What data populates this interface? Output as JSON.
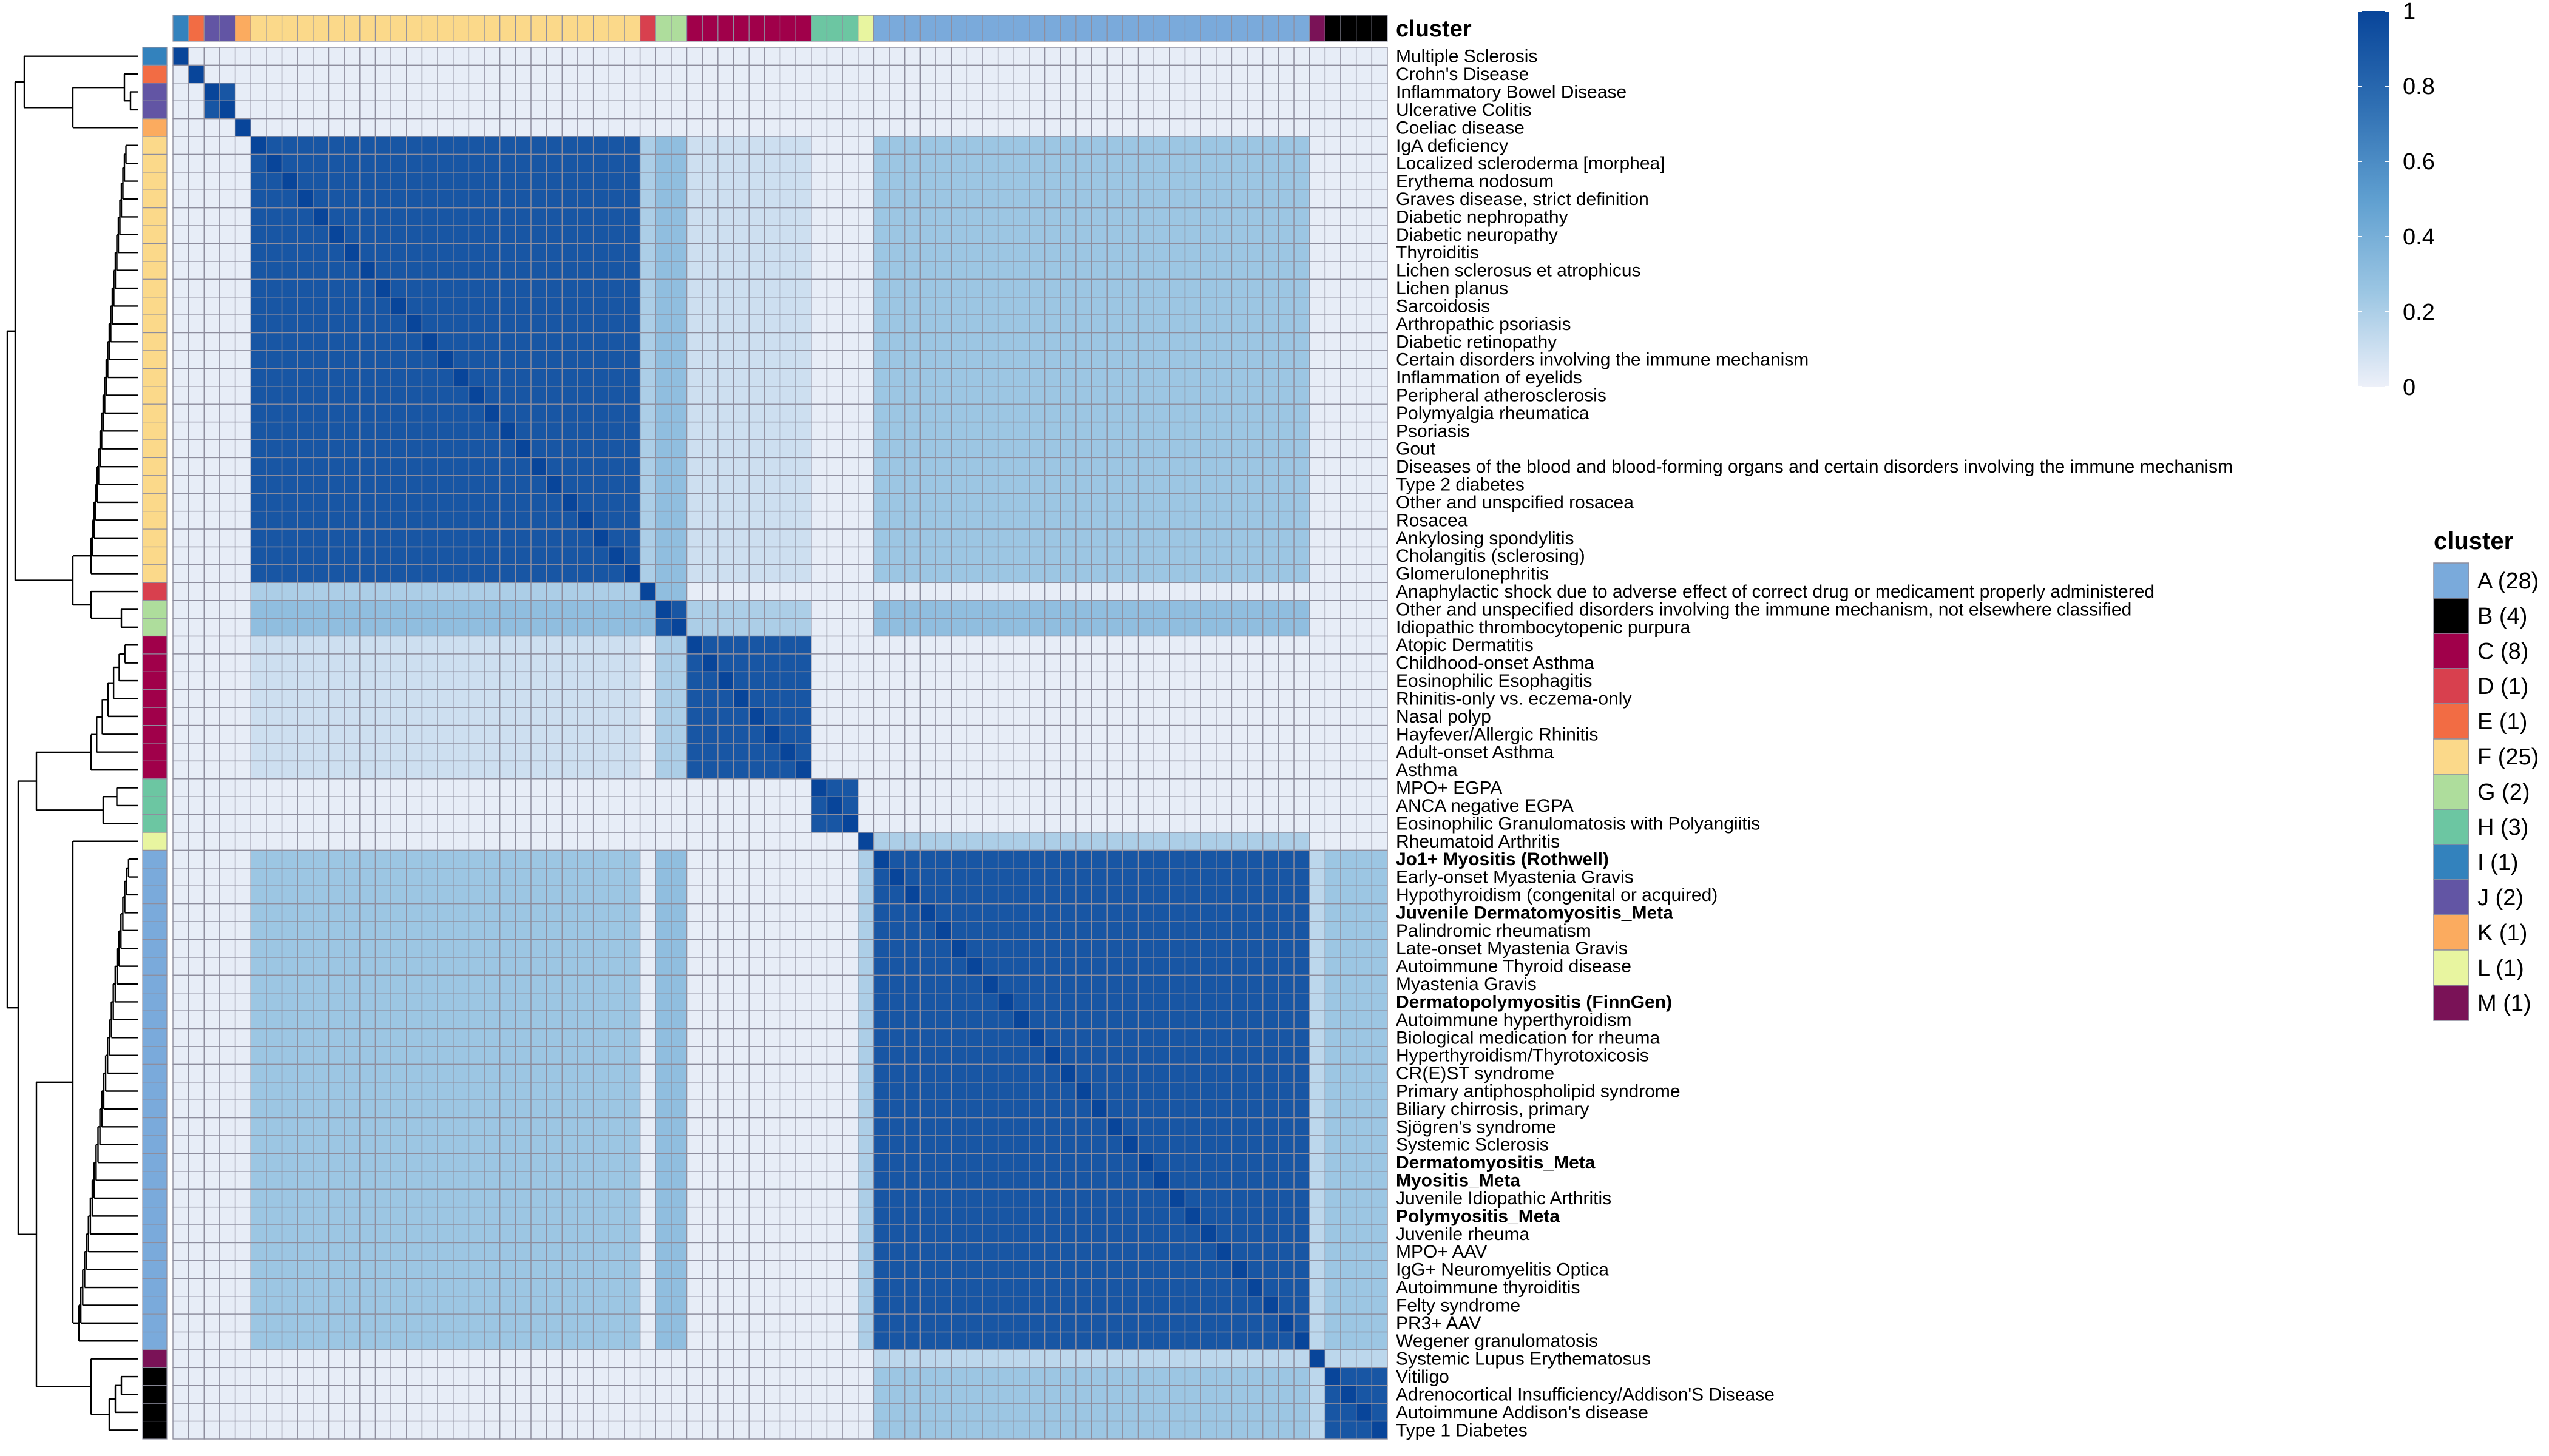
{
  "chart_data": {
    "type": "heatmap",
    "annotation_title": "cluster",
    "legend": {
      "title": "cluster",
      "entries": [
        {
          "key": "A",
          "label": "A (28)",
          "color": "#7aaadb"
        },
        {
          "key": "B",
          "label": "B (4)",
          "color": "#000000"
        },
        {
          "key": "C",
          "label": "C (8)",
          "color": "#a0004a"
        },
        {
          "key": "D",
          "label": "D (1)",
          "color": "#d8404e"
        },
        {
          "key": "E",
          "label": "E (1)",
          "color": "#f26c44"
        },
        {
          "key": "F",
          "label": "F (25)",
          "color": "#fbd98a"
        },
        {
          "key": "G",
          "label": "G (2)",
          "color": "#aedd9c"
        },
        {
          "key": "H",
          "label": "H (3)",
          "color": "#6cc6a2"
        },
        {
          "key": "I",
          "label": "I (1)",
          "color": "#3382bd"
        },
        {
          "key": "J",
          "label": "J (2)",
          "color": "#6255a4"
        },
        {
          "key": "K",
          "label": "K (1)",
          "color": "#fbab5f"
        },
        {
          "key": "L",
          "label": "L (1)",
          "color": "#e8f5a0"
        },
        {
          "key": "M",
          "label": "M (1)",
          "color": "#7a1257"
        }
      ]
    },
    "colorbar": {
      "ticks": [
        "1",
        "0.8",
        "0.6",
        "0.4",
        "0.2",
        "0"
      ],
      "min": 0,
      "max": 1,
      "colors": [
        "#edf0f9",
        "#9cc6e3",
        "#5f9fd0",
        "#2f6fb3",
        "#08459a"
      ]
    },
    "rows": [
      {
        "label": "Multiple Sclerosis",
        "cluster": "I",
        "bold": false
      },
      {
        "label": "Crohn's Disease",
        "cluster": "E",
        "bold": false
      },
      {
        "label": "Inflammatory Bowel Disease",
        "cluster": "J",
        "bold": false
      },
      {
        "label": "Ulcerative Colitis",
        "cluster": "J",
        "bold": false
      },
      {
        "label": "Coeliac disease",
        "cluster": "K",
        "bold": false
      },
      {
        "label": "IgA deficiency",
        "cluster": "F",
        "bold": false
      },
      {
        "label": "Localized scleroderma [morphea]",
        "cluster": "F",
        "bold": false
      },
      {
        "label": "Erythema nodosum",
        "cluster": "F",
        "bold": false
      },
      {
        "label": "Graves disease, strict definition",
        "cluster": "F",
        "bold": false
      },
      {
        "label": "Diabetic nephropathy",
        "cluster": "F",
        "bold": false
      },
      {
        "label": "Diabetic neuropathy",
        "cluster": "F",
        "bold": false
      },
      {
        "label": "Thyroiditis",
        "cluster": "F",
        "bold": false
      },
      {
        "label": "Lichen sclerosus et atrophicus",
        "cluster": "F",
        "bold": false
      },
      {
        "label": "Lichen planus",
        "cluster": "F",
        "bold": false
      },
      {
        "label": "Sarcoidosis",
        "cluster": "F",
        "bold": false
      },
      {
        "label": "Arthropathic psoriasis",
        "cluster": "F",
        "bold": false
      },
      {
        "label": "Diabetic retinopathy",
        "cluster": "F",
        "bold": false
      },
      {
        "label": "Certain disorders involving the immune mechanism",
        "cluster": "F",
        "bold": false
      },
      {
        "label": "Inflammation of eyelids",
        "cluster": "F",
        "bold": false
      },
      {
        "label": "Peripheral atherosclerosis",
        "cluster": "F",
        "bold": false
      },
      {
        "label": "Polymyalgia rheumatica",
        "cluster": "F",
        "bold": false
      },
      {
        "label": "Psoriasis",
        "cluster": "F",
        "bold": false
      },
      {
        "label": "Gout",
        "cluster": "F",
        "bold": false
      },
      {
        "label": "Diseases of the blood and blood-forming organs and certain disorders involving the immune mechanism",
        "cluster": "F",
        "bold": false
      },
      {
        "label": "Type 2 diabetes",
        "cluster": "F",
        "bold": false
      },
      {
        "label": "Other and unspcified rosacea",
        "cluster": "F",
        "bold": false
      },
      {
        "label": "Rosacea",
        "cluster": "F",
        "bold": false
      },
      {
        "label": "Ankylosing spondylitis",
        "cluster": "F",
        "bold": false
      },
      {
        "label": "Cholangitis (sclerosing)",
        "cluster": "F",
        "bold": false
      },
      {
        "label": "Glomerulonephritis",
        "cluster": "F",
        "bold": false
      },
      {
        "label": "Anaphylactic shock due to adverse effect of correct drug or medicament properly administered",
        "cluster": "D",
        "bold": false
      },
      {
        "label": "Other and unspecified disorders involving the immune mechanism, not elsewhere classified",
        "cluster": "G",
        "bold": false
      },
      {
        "label": "Idiopathic thrombocytopenic purpura",
        "cluster": "G",
        "bold": false
      },
      {
        "label": "Atopic Dermatitis",
        "cluster": "C",
        "bold": false
      },
      {
        "label": "Childhood-onset Asthma",
        "cluster": "C",
        "bold": false
      },
      {
        "label": "Eosinophilic Esophagitis",
        "cluster": "C",
        "bold": false
      },
      {
        "label": "Rhinitis-only vs. eczema-only",
        "cluster": "C",
        "bold": false
      },
      {
        "label": "Nasal polyp",
        "cluster": "C",
        "bold": false
      },
      {
        "label": "Hayfever/Allergic Rhinitis",
        "cluster": "C",
        "bold": false
      },
      {
        "label": "Adult-onset Asthma",
        "cluster": "C",
        "bold": false
      },
      {
        "label": "Asthma",
        "cluster": "C",
        "bold": false
      },
      {
        "label": "MPO+ EGPA",
        "cluster": "H",
        "bold": false
      },
      {
        "label": "ANCA negative EGPA",
        "cluster": "H",
        "bold": false
      },
      {
        "label": "Eosinophilic Granulomatosis with Polyangiitis",
        "cluster": "H",
        "bold": false
      },
      {
        "label": "Rheumatoid Arthritis",
        "cluster": "L",
        "bold": false
      },
      {
        "label": "Jo1+ Myositis (Rothwell)",
        "cluster": "A",
        "bold": true
      },
      {
        "label": "Early-onset Myastenia Gravis",
        "cluster": "A",
        "bold": false
      },
      {
        "label": "Hypothyroidism (congenital or acquired)",
        "cluster": "A",
        "bold": false
      },
      {
        "label": "Juvenile Dermatomyositis_Meta",
        "cluster": "A",
        "bold": true
      },
      {
        "label": "Palindromic rheumatism",
        "cluster": "A",
        "bold": false
      },
      {
        "label": "Late-onset Myastenia Gravis",
        "cluster": "A",
        "bold": false
      },
      {
        "label": "Autoimmune Thyroid disease",
        "cluster": "A",
        "bold": false
      },
      {
        "label": "Myastenia Gravis",
        "cluster": "A",
        "bold": false
      },
      {
        "label": "Dermatopolymyositis (FinnGen)",
        "cluster": "A",
        "bold": true
      },
      {
        "label": "Autoimmune hyperthyroidism",
        "cluster": "A",
        "bold": false
      },
      {
        "label": "Biological medication for rheuma",
        "cluster": "A",
        "bold": false
      },
      {
        "label": "Hyperthyroidism/Thyrotoxicosis",
        "cluster": "A",
        "bold": false
      },
      {
        "label": "CR(E)ST syndrome",
        "cluster": "A",
        "bold": false
      },
      {
        "label": "Primary antiphospholipid syndrome",
        "cluster": "A",
        "bold": false
      },
      {
        "label": "Biliary chirrosis, primary",
        "cluster": "A",
        "bold": false
      },
      {
        "label": "Sjögren's syndrome",
        "cluster": "A",
        "bold": false
      },
      {
        "label": "Systemic Sclerosis",
        "cluster": "A",
        "bold": false
      },
      {
        "label": "Dermatomyositis_Meta",
        "cluster": "A",
        "bold": true
      },
      {
        "label": "Myositis_Meta",
        "cluster": "A",
        "bold": true
      },
      {
        "label": "Juvenile Idiopathic Arthritis",
        "cluster": "A",
        "bold": false
      },
      {
        "label": "Polymyositis_Meta",
        "cluster": "A",
        "bold": true
      },
      {
        "label": "Juvenile rheuma",
        "cluster": "A",
        "bold": false
      },
      {
        "label": "MPO+ AAV",
        "cluster": "A",
        "bold": false
      },
      {
        "label": "IgG+ Neuromyelitis Optica",
        "cluster": "A",
        "bold": false
      },
      {
        "label": "Autoimmune thyroiditis",
        "cluster": "A",
        "bold": false
      },
      {
        "label": "Felty syndrome",
        "cluster": "A",
        "bold": false
      },
      {
        "label": "PR3+ AAV",
        "cluster": "A",
        "bold": false
      },
      {
        "label": "Wegener granulomatosis",
        "cluster": "A",
        "bold": false
      },
      {
        "label": "Systemic Lupus Erythematosus",
        "cluster": "M",
        "bold": false
      },
      {
        "label": "Vitiligo",
        "cluster": "B",
        "bold": false
      },
      {
        "label": "Adrenocortical Insufficiency/Addison'S Disease",
        "cluster": "B",
        "bold": false
      },
      {
        "label": "Autoimmune Addison's disease",
        "cluster": "B",
        "bold": false
      },
      {
        "label": "Type 1 Diabetes",
        "cluster": "B",
        "bold": false
      }
    ],
    "values_rule": {
      "diagonal": 1.0,
      "within_cluster": 0.9,
      "between_clusters": [
        {
          "a": "F",
          "b": "D",
          "value": 0.2
        },
        {
          "a": "F",
          "b": "G",
          "value": 0.3
        },
        {
          "a": "F",
          "b": "A",
          "value": 0.25
        },
        {
          "a": "F",
          "b": "C",
          "value": 0.1
        },
        {
          "a": "A",
          "b": "G",
          "value": 0.3
        },
        {
          "a": "A",
          "b": "B",
          "value": 0.25
        },
        {
          "a": "A",
          "b": "L",
          "value": 0.2
        },
        {
          "a": "A",
          "b": "M",
          "value": 0.15
        },
        {
          "a": "C",
          "b": "G",
          "value": 0.2
        },
        {
          "a": "D",
          "b": "G",
          "value": 0.3
        },
        {
          "a": "B",
          "b": "M",
          "value": 0.15
        }
      ],
      "default": 0.02
    }
  }
}
